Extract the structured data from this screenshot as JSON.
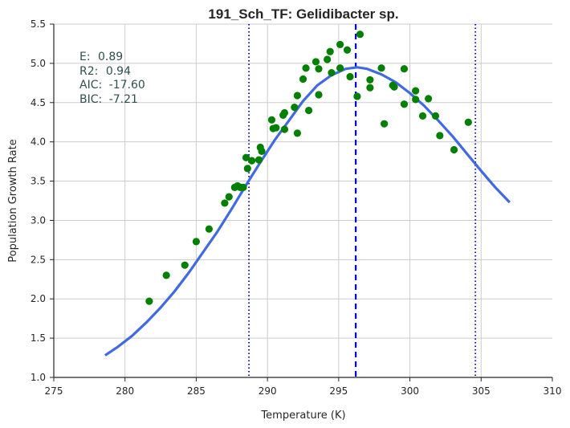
{
  "chart_data": {
    "type": "scatter",
    "title": "191_Sch_TF: Gelidibacter sp.",
    "xlabel": "Temperature (K)",
    "ylabel": "Population Growth Rate",
    "xlim": [
      275,
      310
    ],
    "ylim": [
      1.0,
      5.5
    ],
    "x_ticks": [
      "275",
      "280",
      "285",
      "290",
      "295",
      "300",
      "305",
      "310"
    ],
    "y_ticks": [
      "1.0",
      "1.5",
      "2.0",
      "2.5",
      "3.0",
      "3.5",
      "4.0",
      "4.5",
      "5.0",
      "5.5"
    ],
    "grid": true,
    "stats": [
      {
        "label": "E:",
        "value": "0.89"
      },
      {
        "label": "R2:",
        "value": "0.94"
      },
      {
        "label": "AIC:",
        "value": "-17.60"
      },
      {
        "label": "BIC:",
        "value": "-7.21"
      }
    ],
    "points": [
      [
        281.7,
        1.97
      ],
      [
        282.9,
        2.3
      ],
      [
        284.2,
        2.43
      ],
      [
        285.0,
        2.73
      ],
      [
        285.9,
        2.89
      ],
      [
        287.0,
        3.22
      ],
      [
        287.3,
        3.3
      ],
      [
        287.7,
        3.42
      ],
      [
        287.9,
        3.44
      ],
      [
        288.1,
        3.42
      ],
      [
        288.3,
        3.42
      ],
      [
        288.6,
        3.66
      ],
      [
        288.5,
        3.8
      ],
      [
        288.9,
        3.76
      ],
      [
        289.4,
        3.77
      ],
      [
        289.5,
        3.93
      ],
      [
        289.6,
        3.88
      ],
      [
        290.3,
        4.28
      ],
      [
        290.4,
        4.17
      ],
      [
        290.6,
        4.18
      ],
      [
        291.1,
        4.34
      ],
      [
        291.2,
        4.37
      ],
      [
        291.2,
        4.16
      ],
      [
        291.9,
        4.44
      ],
      [
        292.1,
        4.59
      ],
      [
        292.1,
        4.11
      ],
      [
        292.5,
        4.8
      ],
      [
        292.7,
        4.94
      ],
      [
        292.9,
        4.4
      ],
      [
        293.4,
        5.02
      ],
      [
        293.6,
        4.93
      ],
      [
        293.6,
        4.6
      ],
      [
        294.2,
        5.05
      ],
      [
        294.4,
        5.15
      ],
      [
        294.5,
        4.88
      ],
      [
        295.1,
        5.24
      ],
      [
        295.1,
        4.94
      ],
      [
        295.6,
        5.17
      ],
      [
        295.8,
        4.83
      ],
      [
        296.3,
        4.58
      ],
      [
        296.5,
        5.37
      ],
      [
        297.2,
        4.79
      ],
      [
        297.2,
        4.69
      ],
      [
        298.0,
        4.94
      ],
      [
        298.2,
        4.23
      ],
      [
        298.8,
        4.72
      ],
      [
        298.9,
        4.7
      ],
      [
        299.6,
        4.93
      ],
      [
        299.6,
        4.48
      ],
      [
        300.4,
        4.65
      ],
      [
        300.4,
        4.54
      ],
      [
        300.9,
        4.33
      ],
      [
        301.3,
        4.55
      ],
      [
        301.8,
        4.33
      ],
      [
        302.1,
        4.08
      ],
      [
        303.1,
        3.9
      ],
      [
        304.1,
        4.25
      ]
    ],
    "fit_curve": [
      [
        278.6,
        1.28
      ],
      [
        279.5,
        1.39
      ],
      [
        280.5,
        1.53
      ],
      [
        281.5,
        1.7
      ],
      [
        282.5,
        1.89
      ],
      [
        283.5,
        2.1
      ],
      [
        284.5,
        2.34
      ],
      [
        285.5,
        2.6
      ],
      [
        286.5,
        2.86
      ],
      [
        287.5,
        3.15
      ],
      [
        288.5,
        3.45
      ],
      [
        289.5,
        3.74
      ],
      [
        290.5,
        4.02
      ],
      [
        291.5,
        4.27
      ],
      [
        292.5,
        4.52
      ],
      [
        293.5,
        4.72
      ],
      [
        294.5,
        4.85
      ],
      [
        295.5,
        4.93
      ],
      [
        296.3,
        4.95
      ],
      [
        297.0,
        4.93
      ],
      [
        298.0,
        4.86
      ],
      [
        299.0,
        4.76
      ],
      [
        300.0,
        4.62
      ],
      [
        301.0,
        4.46
      ],
      [
        302.0,
        4.27
      ],
      [
        303.0,
        4.07
      ],
      [
        304.0,
        3.85
      ],
      [
        305.0,
        3.63
      ],
      [
        306.0,
        3.42
      ],
      [
        307.0,
        3.23
      ]
    ],
    "vlines": [
      {
        "x": 288.7,
        "style": "dotted"
      },
      {
        "x": 296.2,
        "style": "dashed"
      },
      {
        "x": 304.6,
        "style": "dotted"
      }
    ],
    "colors": {
      "points": "#008000",
      "fit": "#4169e1",
      "vline": "#0000cd",
      "grid": "#cccccc",
      "axis": "#262626",
      "stats": "#2f4f4f"
    }
  }
}
